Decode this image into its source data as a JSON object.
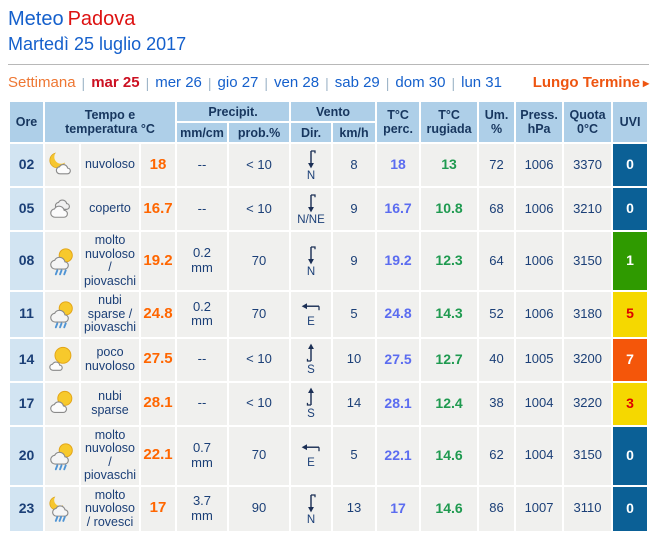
{
  "header": {
    "title_meteo": "Meteo",
    "title_city": "Padova",
    "date": "Martedì 25 luglio 2017"
  },
  "nav": {
    "settimana": "Settimana",
    "separator": "|",
    "days": [
      {
        "label": "mar 25",
        "active": true
      },
      {
        "label": "mer 26",
        "active": false
      },
      {
        "label": "gio 27",
        "active": false
      },
      {
        "label": "ven 28",
        "active": false
      },
      {
        "label": "sab 29",
        "active": false
      },
      {
        "label": "dom 30",
        "active": false
      },
      {
        "label": "lun 31",
        "active": false
      }
    ],
    "lungo_termine": "Lungo Termine",
    "arrow_glyph": "▸"
  },
  "colors": {
    "title_blue": "#1560cc",
    "title_red": "#dd1111",
    "nav_orange": "#ee7733",
    "active_day_red": "#cc1122",
    "lungo_orange": "#ee5511",
    "header_bg": "#aecfe8",
    "hour_bg": "#d2e4f2",
    "cell_bg": "#f0f0ee",
    "temp_orange": "#ff6600",
    "perceived_blue": "#5b6cf0",
    "dewpoint_green": "#1f9a50",
    "uvi_blue": "#0b6096",
    "uvi_green": "#2f9a00",
    "uvi_yellow": "#f5d800",
    "uvi_orange": "#f4560a",
    "uvi_red_text": "#dd0000"
  },
  "table": {
    "headers": {
      "ore": "Ore",
      "tempo": "Tempo e\ntemperatura °C",
      "precipit": "Precipit.",
      "mm_cm": "mm/cm",
      "prob": "prob.%",
      "vento": "Vento",
      "dir": "Dir.",
      "kmh": "km/h",
      "t_perc": "T°C\nperc.",
      "t_rugiada": "T°C\nrugiada",
      "um": "Um.\n%",
      "press": "Press.\nhPa",
      "quota": "Quota\n0°C",
      "uvi": "UVI"
    },
    "rows": [
      {
        "ore": "02",
        "icon": "moon-cloud",
        "desc": "nuvoloso",
        "temp": "18",
        "precip": "--",
        "prob": "< 10",
        "dir": "N",
        "kmh": "8",
        "t_perc": "18",
        "t_rugiada": "13",
        "um": "72",
        "press": "1006",
        "quota": "3370",
        "uvi": "0",
        "uvi_bg": "#0b6096",
        "uvi_text": "#ffffff"
      },
      {
        "ore": "05",
        "icon": "clouds",
        "desc": "coperto",
        "temp": "16.7",
        "precip": "--",
        "prob": "< 10",
        "dir": "N/NE",
        "kmh": "9",
        "t_perc": "16.7",
        "t_rugiada": "10.8",
        "um": "68",
        "press": "1006",
        "quota": "3210",
        "uvi": "0",
        "uvi_bg": "#0b6096",
        "uvi_text": "#ffffff"
      },
      {
        "ore": "08",
        "icon": "sun-cloud-rain",
        "desc": "molto nuvoloso / piovaschi",
        "temp": "19.2",
        "precip": "0.2\nmm",
        "prob": "70",
        "dir": "N",
        "kmh": "9",
        "t_perc": "19.2",
        "t_rugiada": "12.3",
        "um": "64",
        "press": "1006",
        "quota": "3150",
        "uvi": "1",
        "uvi_bg": "#2f9a00",
        "uvi_text": "#ffffff"
      },
      {
        "ore": "11",
        "icon": "sun-cloud-rain",
        "desc": "nubi sparse / piovaschi",
        "temp": "24.8",
        "precip": "0.2\nmm",
        "prob": "70",
        "dir": "E",
        "kmh": "5",
        "t_perc": "24.8",
        "t_rugiada": "14.3",
        "um": "52",
        "press": "1006",
        "quota": "3180",
        "uvi": "5",
        "uvi_bg": "#f5d800",
        "uvi_text": "#dd0000"
      },
      {
        "ore": "14",
        "icon": "sun-small-cloud",
        "desc": "poco nuvoloso",
        "temp": "27.5",
        "precip": "--",
        "prob": "< 10",
        "dir": "S",
        "kmh": "10",
        "t_perc": "27.5",
        "t_rugiada": "12.7",
        "um": "40",
        "press": "1005",
        "quota": "3200",
        "uvi": "7",
        "uvi_bg": "#f4560a",
        "uvi_text": "#ffffff"
      },
      {
        "ore": "17",
        "icon": "sun-cloud",
        "desc": "nubi sparse",
        "temp": "28.1",
        "precip": "--",
        "prob": "< 10",
        "dir": "S",
        "kmh": "14",
        "t_perc": "28.1",
        "t_rugiada": "12.4",
        "um": "38",
        "press": "1004",
        "quota": "3220",
        "uvi": "3",
        "uvi_bg": "#f5d800",
        "uvi_text": "#dd0000"
      },
      {
        "ore": "20",
        "icon": "sun-cloud-rain",
        "desc": "molto nuvoloso / piovaschi",
        "temp": "22.1",
        "precip": "0.7\nmm",
        "prob": "70",
        "dir": "E",
        "kmh": "5",
        "t_perc": "22.1",
        "t_rugiada": "14.6",
        "um": "62",
        "press": "1004",
        "quota": "3150",
        "uvi": "0",
        "uvi_bg": "#0b6096",
        "uvi_text": "#ffffff"
      },
      {
        "ore": "23",
        "icon": "moon-cloud-rain",
        "desc": "molto nuvoloso / rovesci",
        "temp": "17",
        "precip": "3.7\nmm",
        "prob": "90",
        "dir": "N",
        "kmh": "13",
        "t_perc": "17",
        "t_rugiada": "14.6",
        "um": "86",
        "press": "1007",
        "quota": "3110",
        "uvi": "0",
        "uvi_bg": "#0b6096",
        "uvi_text": "#ffffff"
      }
    ]
  }
}
